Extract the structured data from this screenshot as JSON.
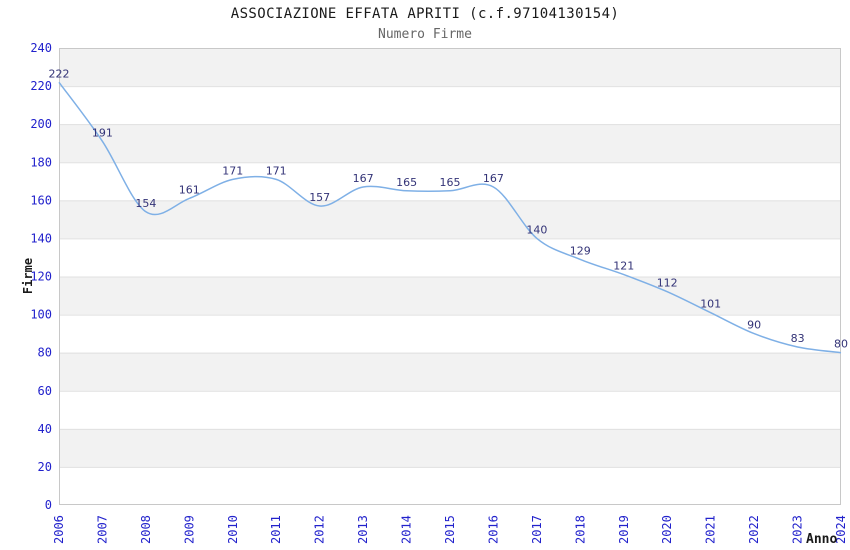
{
  "header": {
    "title": "ASSOCIAZIONE EFFATA APRITI (c.f.97104130154)",
    "subtitle": "Numero Firme"
  },
  "chart_data": {
    "type": "line",
    "title": "ASSOCIAZIONE EFFATA APRITI (c.f.97104130154)",
    "subtitle": "Numero Firme",
    "xlabel": "Anno",
    "ylabel": "Firme",
    "categories": [
      "2006",
      "2007",
      "2008",
      "2009",
      "2010",
      "2011",
      "2012",
      "2013",
      "2014",
      "2015",
      "2016",
      "2017",
      "2018",
      "2019",
      "2020",
      "2021",
      "2022",
      "2023",
      "2024"
    ],
    "values": [
      222,
      191,
      154,
      161,
      171,
      171,
      157,
      167,
      165,
      165,
      167,
      140,
      129,
      121,
      112,
      101,
      90,
      83,
      80
    ],
    "ylim": [
      0,
      240
    ],
    "ytick_step": 20,
    "legend": "none",
    "grid": "horizontal-bands-alternating",
    "value_labels": "shown-above-points",
    "colors": {
      "line": "#7fb0e6",
      "value_label": "#333377",
      "tick_label": "#2222cc",
      "band": "#f2f2f2",
      "gridline": "#e0e0e0",
      "frame": "#c8c8c8",
      "title": "#1a1a1a",
      "subtitle": "#666666",
      "axis_title": "#1a1a1a"
    }
  }
}
